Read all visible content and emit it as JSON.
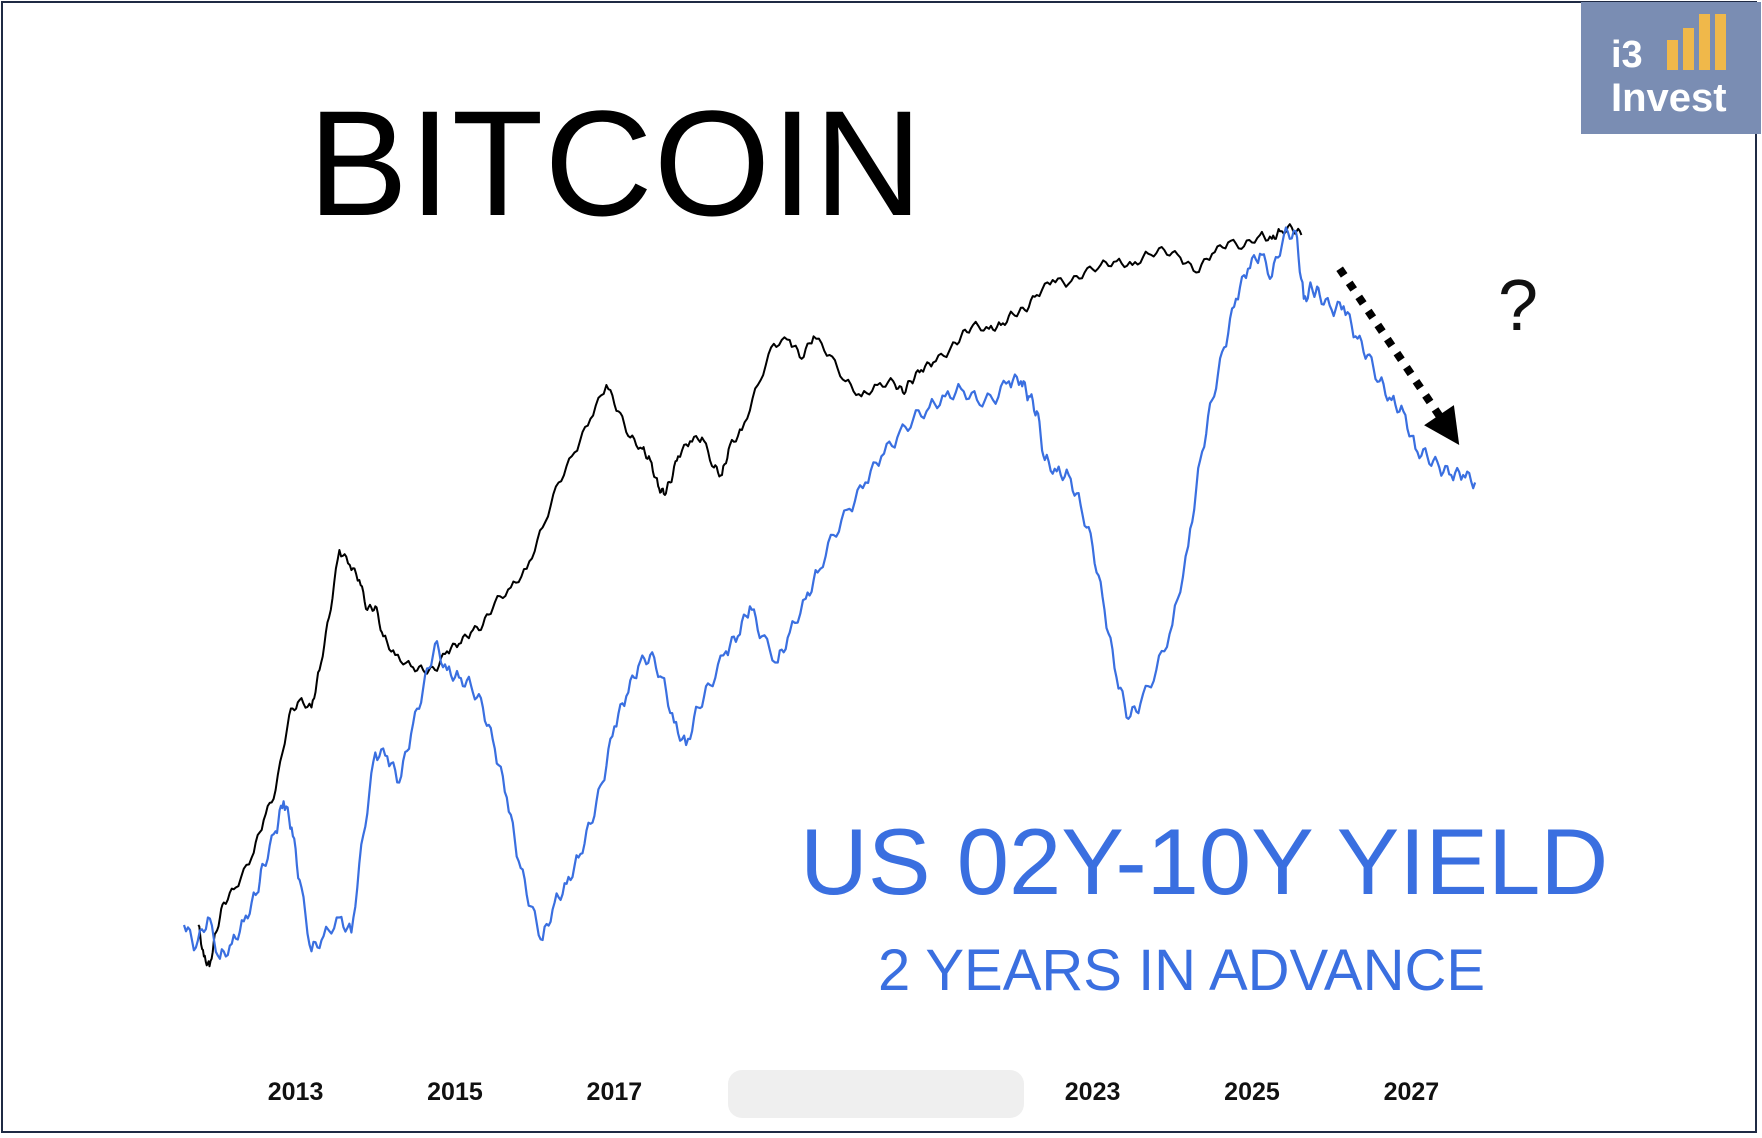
{
  "logo": {
    "line1": "i3",
    "line2": "Invest"
  },
  "annotation": {
    "question": "?"
  },
  "colors": {
    "bitcoin": "#000000",
    "yield": "#3a6fe0",
    "frame": "#1f2a44",
    "logo_bg": "#7a8db3",
    "logo_bars": "#f0b84a"
  },
  "chart_data": {
    "type": "line",
    "title": "BITCOIN",
    "annotation_title": "US 02Y-10Y YIELD",
    "annotation_subtitle": "2 YEARS IN ADVANCE",
    "x_tick_labels": [
      "2013",
      "2015",
      "2017",
      "2023",
      "2025",
      "2027"
    ],
    "xlim": [
      2011.55,
      2028.3
    ],
    "ylim": [
      0,
      100
    ],
    "grid": false,
    "legend": "none",
    "series": [
      {
        "name": "BITCOIN",
        "color": "#000000",
        "x": [
          2011.78,
          2011.85,
          2011.92,
          2012.0,
          2012.1,
          2012.25,
          2012.45,
          2012.6,
          2012.75,
          2012.92,
          2013.05,
          2013.2,
          2013.3,
          2013.42,
          2013.55,
          2013.68,
          2013.8,
          2013.9,
          2014.0,
          2014.1,
          2014.25,
          2014.45,
          2014.6,
          2014.75,
          2014.9,
          2015.05,
          2015.2,
          2015.35,
          2015.5,
          2015.7,
          2015.9,
          2016.1,
          2016.3,
          2016.5,
          2016.7,
          2016.9,
          2017.05,
          2017.2,
          2017.35,
          2017.45,
          2017.55,
          2017.62,
          2017.7,
          2017.8,
          2017.95,
          2018.1,
          2018.25,
          2018.35,
          2018.45,
          2018.6,
          2018.8,
          2019.0,
          2019.2,
          2019.35,
          2019.5,
          2019.7,
          2019.9,
          2020.1,
          2020.3,
          2020.5,
          2020.62,
          2020.72,
          2020.85,
          2021.0,
          2021.2,
          2021.35,
          2021.5,
          2021.7,
          2021.85,
          2022.0,
          2022.15,
          2022.3,
          2022.5,
          2022.7,
          2022.9,
          2023.1,
          2023.3,
          2023.5,
          2023.7,
          2023.9,
          2024.1,
          2024.3,
          2024.5,
          2024.7,
          2024.9,
          2025.1,
          2025.25,
          2025.35,
          2025.5,
          2025.62
        ],
        "values": [
          8.0,
          3.8,
          2.5,
          7.0,
          11.0,
          13.0,
          17.0,
          22.0,
          26.0,
          36.0,
          38.0,
          37.0,
          42.0,
          49.0,
          58.0,
          56.0,
          54.0,
          50.0,
          50.5,
          46.5,
          44.0,
          42.5,
          42.0,
          42.0,
          44.5,
          45.5,
          47.0,
          48.0,
          51.0,
          53.0,
          55.5,
          61.0,
          67.0,
          71.0,
          75.5,
          80.0,
          76.5,
          73.0,
          71.5,
          70.0,
          66.5,
          65.5,
          67.0,
          70.5,
          72.5,
          73.0,
          69.0,
          68.0,
          72.0,
          74.0,
          80.0,
          85.5,
          86.0,
          83.5,
          86.5,
          84.0,
          80.5,
          78.5,
          80.0,
          80.5,
          79.0,
          80.5,
          82.0,
          83.0,
          84.5,
          86.5,
          88.0,
          87.5,
          88.0,
          89.5,
          90.0,
          92.0,
          94.0,
          93.5,
          95.0,
          96.0,
          96.5,
          96.0,
          97.5,
          98.0,
          97.0,
          95.0,
          97.5,
          99.0,
          98.5,
          100.0,
          99.5,
          100.5,
          101.0,
          100.0
        ]
      },
      {
        "name": "US 02Y-10Y YIELD",
        "color": "#3a6fe0",
        "x": [
          2011.6,
          2011.75,
          2011.9,
          2012.05,
          2012.2,
          2012.35,
          2012.5,
          2012.6,
          2012.75,
          2012.85,
          2012.95,
          2013.05,
          2013.2,
          2013.35,
          2013.55,
          2013.7,
          2013.85,
          2014.0,
          2014.15,
          2014.3,
          2014.45,
          2014.6,
          2014.75,
          2014.9,
          2015.05,
          2015.2,
          2015.35,
          2015.5,
          2015.65,
          2015.8,
          2015.95,
          2016.1,
          2016.25,
          2016.4,
          2016.55,
          2016.7,
          2016.85,
          2017.0,
          2017.15,
          2017.3,
          2017.45,
          2017.6,
          2017.75,
          2017.9,
          2018.05,
          2018.2,
          2018.4,
          2018.55,
          2018.7,
          2018.85,
          2019.05,
          2019.2,
          2019.4,
          2019.55,
          2019.75,
          2019.95,
          2020.15,
          2020.35,
          2020.55,
          2020.75,
          2020.95,
          2021.15,
          2021.35,
          2021.55,
          2021.75,
          2021.95,
          2022.1,
          2022.2,
          2022.3,
          2022.4,
          2022.55,
          2022.7,
          2022.85,
          2023.0,
          2023.15,
          2023.3,
          2023.45,
          2023.6,
          2023.8,
          2024.0,
          2024.2,
          2024.35,
          2024.5,
          2024.65,
          2024.8,
          2024.95,
          2025.1,
          2025.25,
          2025.4,
          2025.55,
          2025.65,
          2025.75,
          2025.85,
          2026.0,
          2026.15,
          2026.3,
          2026.45,
          2026.6,
          2026.75,
          2026.9,
          2027.05,
          2027.2,
          2027.35,
          2027.5,
          2027.65,
          2027.8
        ],
        "values": [
          8.0,
          5.0,
          9.0,
          3.5,
          5.5,
          8.5,
          12.0,
          16.0,
          20.5,
          24.5,
          21.0,
          14.0,
          4.5,
          6.5,
          9.0,
          7.0,
          20.0,
          31.0,
          30.5,
          27.0,
          33.5,
          39.5,
          45.5,
          42.0,
          41.0,
          40.0,
          37.0,
          31.5,
          25.0,
          16.5,
          10.5,
          6.0,
          11.0,
          13.5,
          17.0,
          21.5,
          27.0,
          34.5,
          38.5,
          42.5,
          44.0,
          41.0,
          35.0,
          32.0,
          37.0,
          40.0,
          44.5,
          46.5,
          50.5,
          46.5,
          43.0,
          47.0,
          51.5,
          55.0,
          60.0,
          63.5,
          67.0,
          70.5,
          73.0,
          75.5,
          77.0,
          78.5,
          79.5,
          78.0,
          78.0,
          80.5,
          80.5,
          78.5,
          76.5,
          70.0,
          68.5,
          68.0,
          64.0,
          58.5,
          50.0,
          41.0,
          35.5,
          37.5,
          42.0,
          48.0,
          58.5,
          70.0,
          78.0,
          85.0,
          91.5,
          95.5,
          97.5,
          94.5,
          100.0,
          100.5,
          91.5,
          93.0,
          92.0,
          90.0,
          90.5,
          86.5,
          84.0,
          80.5,
          78.0,
          76.5,
          71.5,
          70.5,
          69.0,
          68.0,
          68.0,
          67.0
        ]
      }
    ],
    "arrow": {
      "type": "dotted-arrow",
      "from": [
        2026.1,
        95.5
      ],
      "to": [
        2027.6,
        72.0
      ]
    }
  }
}
